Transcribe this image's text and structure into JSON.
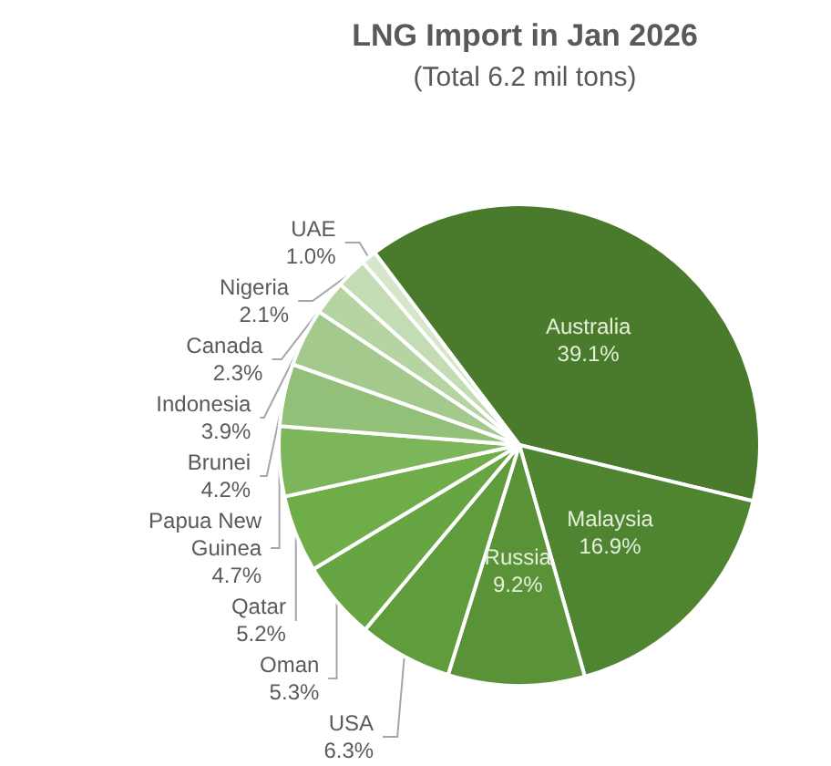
{
  "chart_data": {
    "type": "pie",
    "title": "LNG Import in Jan 2026",
    "subtitle": "(Total 6.2 mil tons)",
    "categories": [
      "Australia",
      "Malaysia",
      "Russia",
      "USA",
      "Oman",
      "Qatar",
      "Papua New Guinea",
      "Brunei",
      "Indonesia",
      "Canada",
      "Nigeria",
      "UAE"
    ],
    "values": [
      39.1,
      16.9,
      9.2,
      6.3,
      5.3,
      5.2,
      4.7,
      4.2,
      3.9,
      2.3,
      2.1,
      1.0
    ],
    "value_labels": [
      "39.1%",
      "16.9%",
      "9.2%",
      "6.3%",
      "5.3%",
      "5.2%",
      "4.7%",
      "4.2%",
      "3.9%",
      "2.3%",
      "2.1%",
      "1.0%"
    ],
    "colors": [
      "#4a7a2b",
      "#4f8430",
      "#5a9237",
      "#5f9c3c",
      "#66a541",
      "#6fad49",
      "#7db55a",
      "#92c078",
      "#a3ca8c",
      "#b5d4a1",
      "#c4dcb4",
      "#d5e6ca"
    ],
    "legend": false
  }
}
